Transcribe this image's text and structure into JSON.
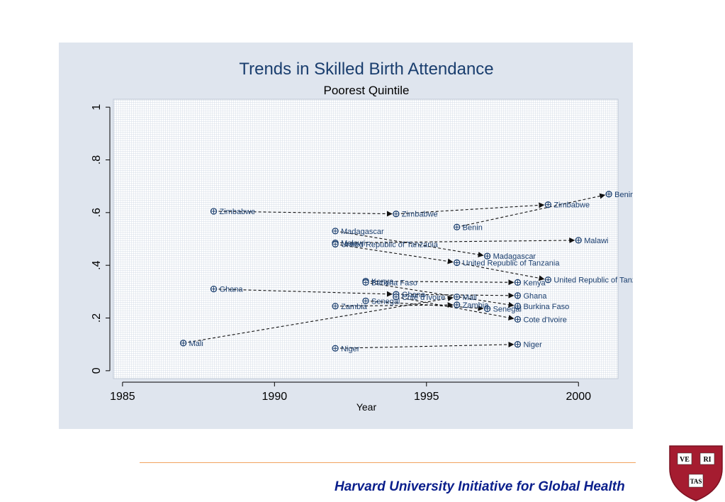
{
  "chart_data": {
    "type": "scatter",
    "title": "Trends in Skilled Birth Attendance",
    "subtitle": "Poorest Quintile",
    "xlabel": "Year",
    "ylabel": "",
    "xlim": [
      1984.7,
      2001.3
    ],
    "ylim": [
      -0.03,
      1.03
    ],
    "xticks": [
      1985,
      1990,
      1995,
      2000
    ],
    "xtick_labels": [
      "1985",
      "1990",
      "1995",
      "2000"
    ],
    "yticks": [
      0,
      0.2,
      0.4,
      0.6,
      0.8,
      1
    ],
    "ytick_labels": [
      "0",
      ".2",
      ".4",
      ".6",
      ".8",
      "1"
    ],
    "grid": true,
    "legend": "none",
    "colors": {
      "marker": "#1a3e6e",
      "arrow": "#111111",
      "label": "#1a3e6e",
      "title": "#1a3e6e",
      "plot_bg": "#ffffff",
      "grid": "#d9e0ea"
    },
    "countries": [
      {
        "name": "Benin",
        "points": [
          [
            1996,
            0.545
          ],
          [
            2001,
            0.67
          ]
        ]
      },
      {
        "name": "Zimbabwe",
        "points": [
          [
            1988,
            0.605
          ],
          [
            1994,
            0.595
          ],
          [
            1999,
            0.63
          ]
        ]
      },
      {
        "name": "Madagascar",
        "points": [
          [
            1992,
            0.53
          ],
          [
            1997,
            0.435
          ]
        ]
      },
      {
        "name": "Malawi",
        "points": [
          [
            1992,
            0.485
          ],
          [
            2000,
            0.495
          ]
        ]
      },
      {
        "name": "United Republic of Tanzania",
        "points": [
          [
            1992,
            0.48
          ],
          [
            1996,
            0.41
          ],
          [
            1999,
            0.345
          ]
        ]
      },
      {
        "name": "Kenya",
        "points": [
          [
            1993,
            0.34
          ],
          [
            1998,
            0.335
          ]
        ]
      },
      {
        "name": "Burkina Faso",
        "points": [
          [
            1993,
            0.335
          ],
          [
            1998,
            0.245
          ]
        ]
      },
      {
        "name": "Ghana",
        "points": [
          [
            1988,
            0.31
          ],
          [
            1994,
            0.29
          ],
          [
            1998,
            0.285
          ]
        ]
      },
      {
        "name": "Cote d'Ivoire",
        "points": [
          [
            1994,
            0.28
          ],
          [
            1998,
            0.195
          ]
        ]
      },
      {
        "name": "Senegal",
        "points": [
          [
            1993,
            0.265
          ],
          [
            1997,
            0.235
          ]
        ]
      },
      {
        "name": "Mali",
        "points": [
          [
            1987,
            0.105
          ],
          [
            1996,
            0.28
          ]
        ]
      },
      {
        "name": "Zambia",
        "points": [
          [
            1992,
            0.245
          ],
          [
            1996,
            0.25
          ]
        ]
      },
      {
        "name": "Niger",
        "points": [
          [
            1992,
            0.085
          ],
          [
            1998,
            0.1
          ]
        ]
      }
    ],
    "labels": [
      {
        "text": "Benin",
        "x": 2001,
        "y": 0.67
      },
      {
        "text": "Zimbabwe",
        "x": 1999,
        "y": 0.63
      },
      {
        "text": "Zimbabwe",
        "x": 1988,
        "y": 0.605
      },
      {
        "text": "Zimbabwe",
        "x": 1994,
        "y": 0.595
      },
      {
        "text": "Benin",
        "x": 1996,
        "y": 0.545
      },
      {
        "text": "Madagascar",
        "x": 1992,
        "y": 0.53
      },
      {
        "text": "Malawi",
        "x": 1992,
        "y": 0.485
      },
      {
        "text": "United Republic of Tanzania",
        "x": 1992,
        "y": 0.48
      },
      {
        "text": "Malawi",
        "x": 2000,
        "y": 0.495
      },
      {
        "text": "Madagascar",
        "x": 1997,
        "y": 0.435
      },
      {
        "text": "United Republic of Tanzania",
        "x": 1996,
        "y": 0.41
      },
      {
        "text": "United Republic of Tanzania",
        "x": 1999,
        "y": 0.345
      },
      {
        "text": "Kenya",
        "x": 1993,
        "y": 0.34
      },
      {
        "text": "Burkina Faso",
        "x": 1993,
        "y": 0.335
      },
      {
        "text": "Kenya",
        "x": 1998,
        "y": 0.335
      },
      {
        "text": "Ghana",
        "x": 1988,
        "y": 0.31
      },
      {
        "text": "Ghana",
        "x": 1994,
        "y": 0.29
      },
      {
        "text": "Cote d'Ivoire",
        "x": 1994,
        "y": 0.28
      },
      {
        "text": "Mali",
        "x": 1996,
        "y": 0.28
      },
      {
        "text": "Ghana",
        "x": 1998,
        "y": 0.285
      },
      {
        "text": "Senegal",
        "x": 1993,
        "y": 0.265
      },
      {
        "text": "Zambia",
        "x": 1992,
        "y": 0.245
      },
      {
        "text": "Zambia",
        "x": 1996,
        "y": 0.25
      },
      {
        "text": "Senegal",
        "x": 1997,
        "y": 0.235
      },
      {
        "text": "Burkina Faso",
        "x": 1998,
        "y": 0.245
      },
      {
        "text": "Cote d'Ivoire",
        "x": 1998,
        "y": 0.195
      },
      {
        "text": "Mali",
        "x": 1987,
        "y": 0.105
      },
      {
        "text": "Niger",
        "x": 1992,
        "y": 0.085
      },
      {
        "text": "Niger",
        "x": 1998,
        "y": 0.1
      }
    ]
  },
  "footer": {
    "text": "Harvard University Initiative for Global Health",
    "logo_text": [
      "VE",
      "RI",
      "TAS"
    ],
    "colors": {
      "text": "#0b1f8c",
      "line": "#f1a35e",
      "shield": "#a51c30"
    }
  }
}
